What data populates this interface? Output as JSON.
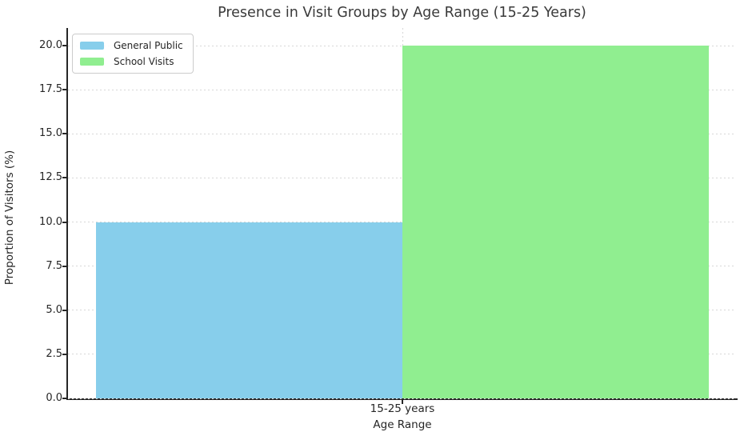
{
  "chart_data": {
    "type": "bar",
    "title": "Presence in Visit Groups by Age Range (15-25 Years)",
    "xlabel": "Age Range",
    "ylabel": "Proportion of Visitors (%)",
    "categories": [
      "15-25 years"
    ],
    "series": [
      {
        "name": "General Public",
        "values": [
          10
        ],
        "color": "#87CEEB"
      },
      {
        "name": "School Visits",
        "values": [
          20
        ],
        "color": "#90EE90"
      }
    ],
    "ylim": [
      0,
      21
    ],
    "yticks": [
      0,
      2.5,
      5,
      7.5,
      10,
      12.5,
      15,
      17.5,
      20
    ],
    "ytick_labels": [
      "0.0",
      "2.5",
      "5.0",
      "7.5",
      "10.0",
      "12.5",
      "15.0",
      "17.5",
      "20.0"
    ],
    "grid": "dashed, horizontal at y-ticks and vertical at category center",
    "legend_position": "upper left"
  },
  "colors": {
    "spine": "#262626",
    "grid": "#d6d6d6",
    "text": "#262626",
    "title": "#3a3a3a",
    "background": "#ffffff",
    "legend_border": "#cccccc"
  }
}
